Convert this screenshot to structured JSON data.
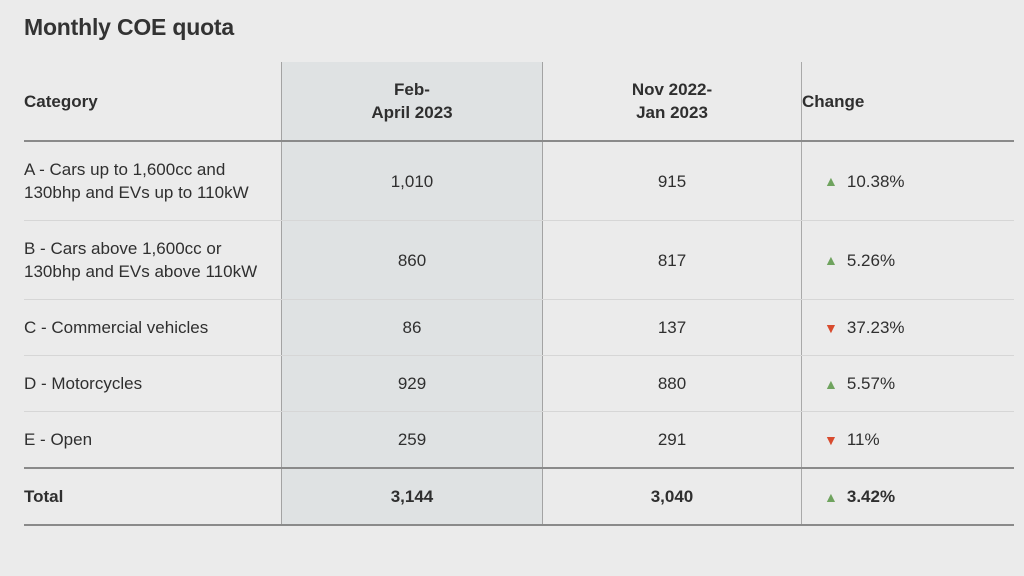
{
  "title": "Monthly COE quota",
  "colors": {
    "up_green": "#6fa35e",
    "down_red": "#d84b2e",
    "highlight_column_bg": "#dfe2e3",
    "page_bg": "#ebebeb"
  },
  "icons": {
    "up": "▲",
    "down": "▼"
  },
  "table": {
    "headers": {
      "category": "Category",
      "current_period": "Feb-\nApril 2023",
      "previous_period": "Nov 2022-\nJan 2023",
      "change": "Change"
    },
    "rows": [
      {
        "category": "A - Cars up to 1,600cc and 130bhp and EVs up to 110kW",
        "current": "1,010",
        "previous": "915",
        "change": "10.38%",
        "direction": "up",
        "is_total": false
      },
      {
        "category": "B - Cars above 1,600cc or 130bhp and EVs above 110kW",
        "current": "860",
        "previous": "817",
        "change": "5.26%",
        "direction": "up",
        "is_total": false
      },
      {
        "category": "C - Commercial vehicles",
        "current": "86",
        "previous": "137",
        "change": "37.23%",
        "direction": "down",
        "is_total": false
      },
      {
        "category": "D - Motorcycles",
        "current": "929",
        "previous": "880",
        "change": "5.57%",
        "direction": "up",
        "is_total": false
      },
      {
        "category": "E - Open",
        "current": "259",
        "previous": "291",
        "change": "11%",
        "direction": "down",
        "is_total": false
      },
      {
        "category": "Total",
        "current": "3,144",
        "previous": "3,040",
        "change": "3.42%",
        "direction": "up",
        "is_total": true
      }
    ]
  },
  "chart_data": {
    "type": "table",
    "title": "Monthly COE quota",
    "columns": [
      "Category",
      "Feb-April 2023",
      "Nov 2022-Jan 2023",
      "Change"
    ],
    "rows": [
      [
        "A - Cars up to 1,600cc and 130bhp and EVs up to 110kW",
        1010,
        915,
        "+10.38%"
      ],
      [
        "B - Cars above 1,600cc or 130bhp and EVs above 110kW",
        860,
        817,
        "+5.26%"
      ],
      [
        "C - Commercial vehicles",
        86,
        137,
        "-37.23%"
      ],
      [
        "D - Motorcycles",
        929,
        880,
        "+5.57%"
      ],
      [
        "E - Open",
        259,
        291,
        "-11%"
      ],
      [
        "Total",
        3144,
        3040,
        "+3.42%"
      ]
    ],
    "layout": {
      "highlighted_column": "Feb-April 2023",
      "up_marker": "green triangle",
      "down_marker": "red triangle"
    }
  }
}
